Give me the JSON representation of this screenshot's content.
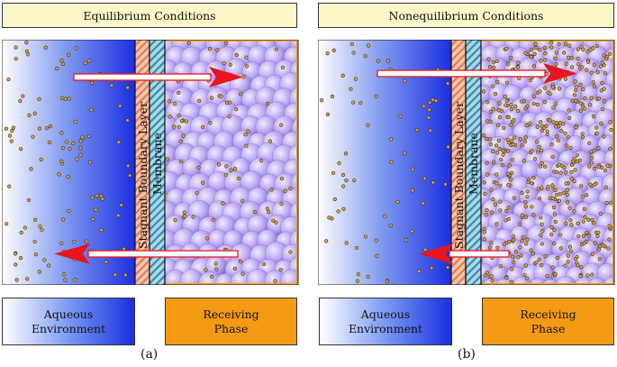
{
  "panels": [
    {
      "id": "a",
      "title": "Equilibrium Conditions",
      "boundary_layer_label": "Stagnant Boundary Layer",
      "membrane_label": "Membrane",
      "sub_label": "(a)"
    },
    {
      "id": "b",
      "title": "Nonequilibrium Conditions",
      "boundary_layer_label": "Stagnant Boundary Layer",
      "membrane_label": "Membrane",
      "sub_label": "(b)"
    }
  ],
  "legend": {
    "aqueous": "Aqueous Environment",
    "receiving": "Receiving Phase"
  },
  "colors": {
    "aqueous_dark": "#1b2fe0",
    "receiving_phase": "#f59a13",
    "sphere": "#b8a3f2",
    "particle": "#d9a646",
    "arrow": "#e8141e",
    "title_bg": "#fdf6c8"
  }
}
